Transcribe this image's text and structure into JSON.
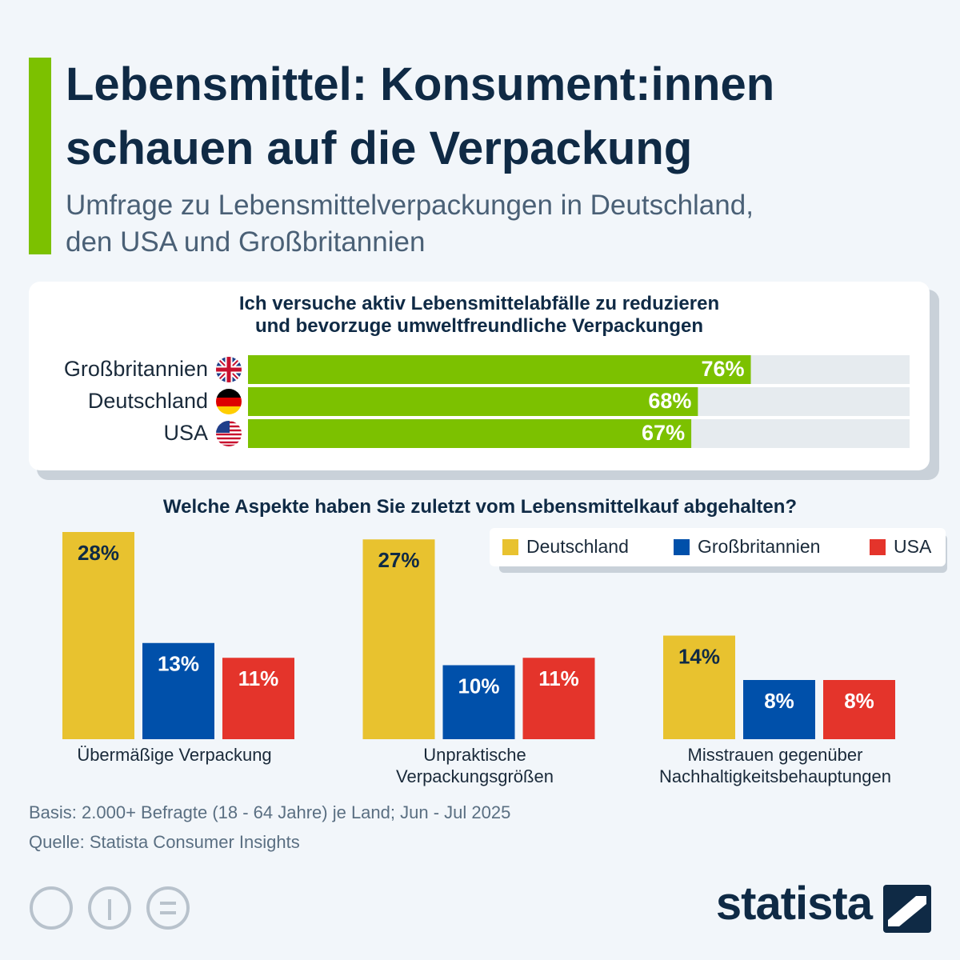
{
  "title": "Lebensmittel: Konsument:innen\nschauen auf die Verpackung",
  "subtitle": "Umfrage zu Lebensmittelverpackungen in Deutschland,\nden USA und Großbritannien",
  "chart_data": [
    {
      "type": "hbar",
      "title": "Ich versuche aktiv Lebensmittelabfälle zu reduzieren\nund bevorzuge umweltfreundliche Verpackungen",
      "categories": [
        "Großbritannien",
        "Deutschland",
        "USA"
      ],
      "values": [
        76,
        68,
        67
      ],
      "value_labels": [
        "76%",
        "68%",
        "67%"
      ],
      "color": "#7cc100",
      "xlim": [
        0,
        100
      ]
    },
    {
      "type": "bar",
      "title": "Welche Aspekte haben Sie zuletzt vom Lebensmittelkauf abgehalten?",
      "categories": [
        "Übermäßige Verpackung",
        "Unpraktische\nVerpackungsgrößen",
        "Misstrauen gegenüber\nNachhaltigkeitsbehauptungen"
      ],
      "series": [
        {
          "name": "Deutschland",
          "color": "#e8c22f",
          "values": [
            28,
            27,
            14
          ],
          "value_labels": [
            "28%",
            "27%",
            "14%"
          ]
        },
        {
          "name": "Großbritannien",
          "color": "#0050aa",
          "values": [
            13,
            10,
            8
          ],
          "value_labels": [
            "13%",
            "10%",
            "8%"
          ]
        },
        {
          "name": "USA",
          "color": "#e4342b",
          "values": [
            11,
            11,
            8
          ],
          "value_labels": [
            "11%",
            "11%",
            "8%"
          ]
        }
      ],
      "legend": "top-right"
    }
  ],
  "footer": {
    "basis": "Basis: 2.000+ Befragte (18 - 64 Jahre) je Land; Jun - Jul 2025",
    "source": "Quelle: Statista Consumer Insights"
  },
  "brand": "statista"
}
